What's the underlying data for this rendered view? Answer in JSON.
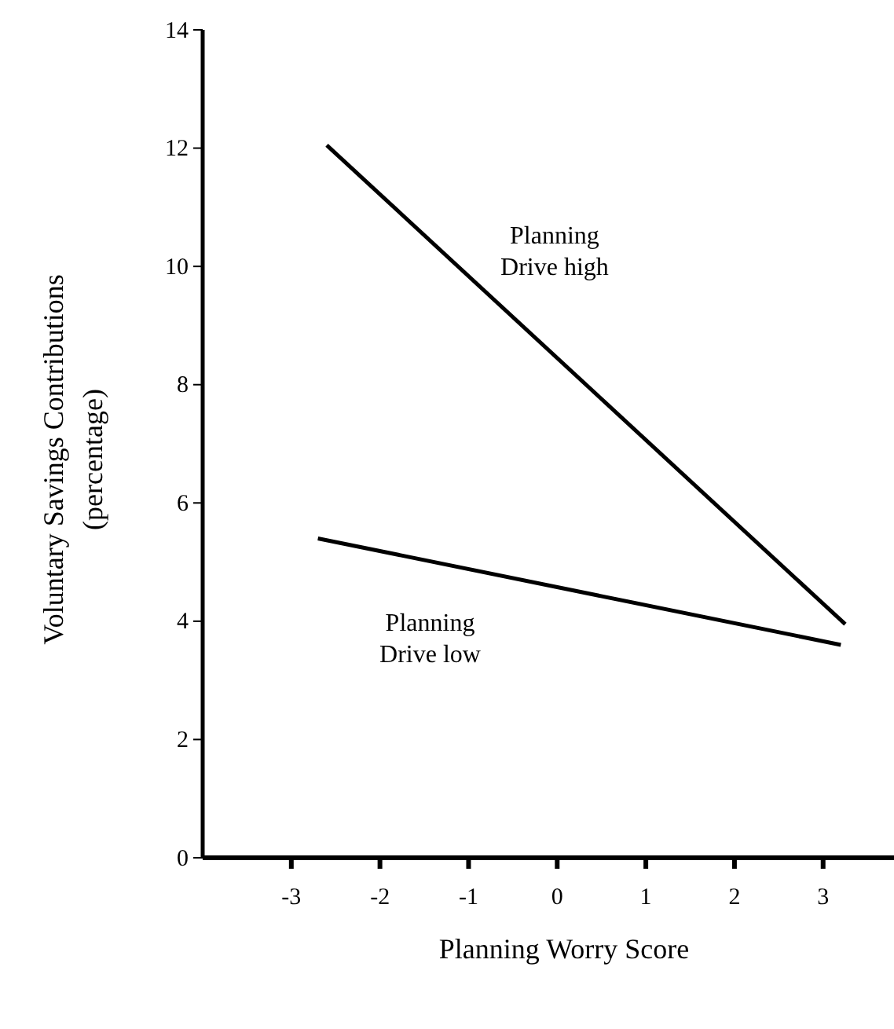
{
  "chart_data": {
    "type": "line",
    "xlabel": "Planning Worry Score",
    "ylabel": "Voluntary Savings Contributions\n(percentage)",
    "xlim": [
      -4,
      3.8
    ],
    "xticks": [
      -3,
      -2,
      -1,
      0,
      1,
      2,
      3
    ],
    "ylim": [
      0,
      14
    ],
    "yticks": [
      0,
      2,
      4,
      6,
      8,
      10,
      12,
      14
    ],
    "grid": false,
    "marker": "none",
    "line_style": "solid",
    "series": [
      {
        "name": "Planning\nDrive high",
        "color": "#000000",
        "x": [
          -2.6,
          3.25
        ],
        "values": [
          12.05,
          3.95
        ]
      },
      {
        "name": "Planning\nDrive low",
        "color": "#000000",
        "x": [
          -2.7,
          3.2
        ],
        "values": [
          5.4,
          3.6
        ]
      }
    ]
  }
}
